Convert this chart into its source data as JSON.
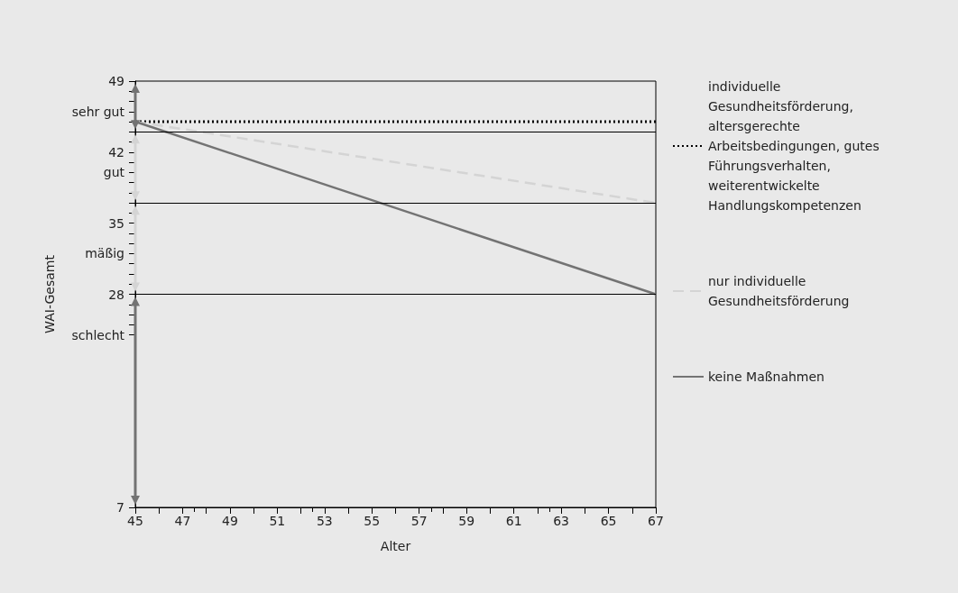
{
  "chart_data": {
    "type": "line",
    "xlabel": "Alter",
    "ylabel": "WAI-Gesamt",
    "x": [
      45,
      67
    ],
    "series": [
      {
        "name": "individuelle Gesundheitsförderung, altersgerechte Arbeitsbedingungen, gutes Führungsverhalten, weiterentwickelte Handlungskompetenzen",
        "color": "#000000",
        "line_style": "dotted",
        "values": [
          45,
          45
        ]
      },
      {
        "name": "nur individuelle Gesundheitsförderung",
        "color": "#d4d4d4",
        "line_style": "dashed",
        "values": [
          45,
          37
        ]
      },
      {
        "name": "keine Maßnahmen",
        "color": "#737373",
        "line_style": "solid",
        "values": [
          45,
          28
        ]
      }
    ],
    "xlim": [
      45,
      67
    ],
    "xticks": [
      45,
      {
        "value": 46,
        "label": null
      },
      47,
      {
        "value": 48,
        "label": null
      },
      49,
      {
        "value": 50,
        "label": null
      },
      51,
      {
        "value": 52,
        "label": null
      },
      53,
      {
        "value": 54,
        "label": null
      },
      55,
      {
        "value": 56,
        "label": null
      },
      57,
      {
        "value": 58,
        "label": null
      },
      59,
      {
        "value": 60,
        "label": null
      },
      61,
      {
        "value": 62,
        "label": null
      },
      63,
      {
        "value": 64,
        "label": null
      },
      65,
      {
        "value": 66,
        "label": null
      },
      67
    ],
    "ylim": [
      7,
      49
    ],
    "yticks": [
      7,
      {
        "value": 24,
        "label": "schlecht"
      },
      {
        "value": 25,
        "label": null
      },
      {
        "value": 26,
        "label": null
      },
      {
        "value": 27,
        "label": null
      },
      28,
      {
        "value": 29,
        "label": null
      },
      {
        "value": 30,
        "label": null
      },
      {
        "value": 31,
        "label": null
      },
      {
        "value": 32,
        "label": "mäßig"
      },
      {
        "value": 33,
        "label": null
      },
      {
        "value": 34,
        "label": null
      },
      35,
      {
        "value": 36,
        "label": null
      },
      {
        "value": 37,
        "label": null
      },
      {
        "value": 38,
        "label": null
      },
      {
        "value": 39,
        "label": null
      },
      {
        "value": 40,
        "label": "gut"
      },
      {
        "value": 41,
        "label": null
      },
      42,
      {
        "value": 43,
        "label": null
      },
      {
        "value": 44,
        "label": null
      },
      {
        "value": 45,
        "label": null
      },
      {
        "value": 46,
        "label": "sehr gut"
      },
      {
        "value": 47,
        "label": null
      },
      {
        "value": 48,
        "label": null
      },
      49
    ],
    "ref_lines": [
      {
        "axis": "y",
        "value": 44,
        "color": "#000000"
      },
      {
        "axis": "y",
        "value": 37,
        "color": "#000000"
      },
      {
        "axis": "y",
        "value": 28,
        "color": "#000000"
      }
    ],
    "grid": false,
    "legend": "right"
  }
}
